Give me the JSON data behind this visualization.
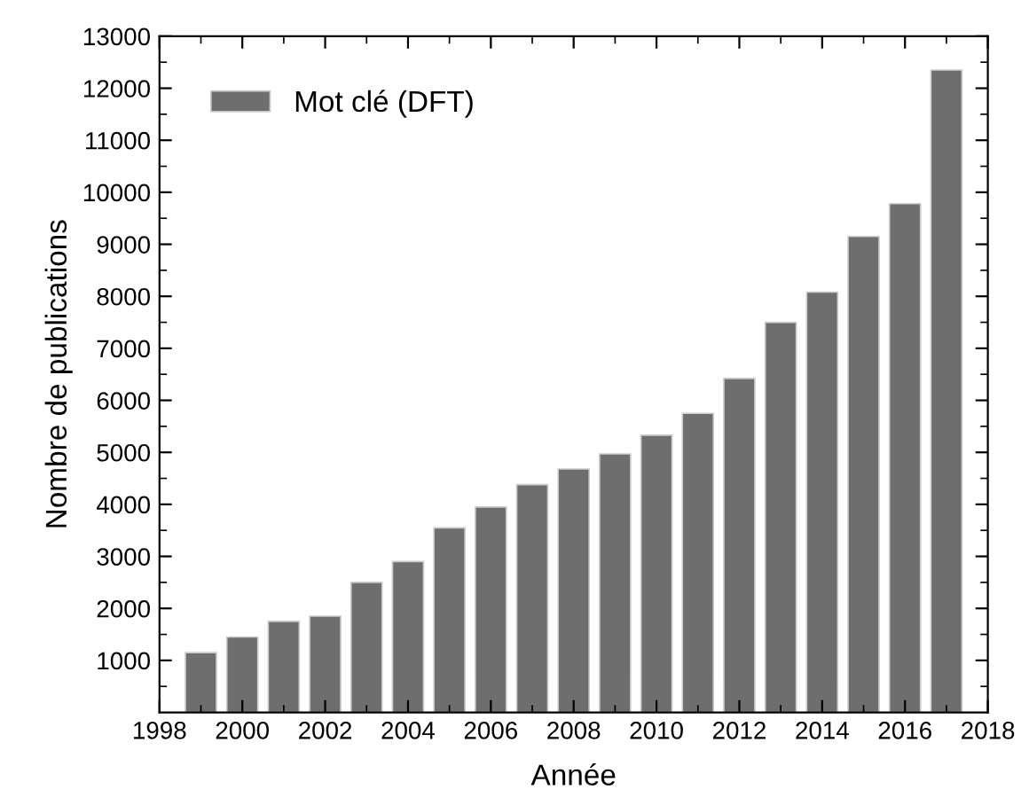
{
  "chart_data": {
    "type": "bar",
    "xlabel": "Année",
    "ylabel": "Nombre de publications",
    "x": [
      1999,
      2000,
      2001,
      2002,
      2003,
      2004,
      2005,
      2006,
      2007,
      2008,
      2009,
      2010,
      2011,
      2012,
      2013,
      2014,
      2015,
      2016,
      2017
    ],
    "series": [
      {
        "name": "Mot clé (DFT)",
        "color": "#6e6e6e",
        "values": [
          1150,
          1450,
          1750,
          1850,
          2500,
          2900,
          3550,
          3950,
          4380,
          4680,
          4970,
          5330,
          5750,
          6420,
          7500,
          8080,
          9150,
          9780,
          12350
        ]
      }
    ],
    "xlim": [
      1998,
      2018
    ],
    "xticks": [
      1998,
      2000,
      2002,
      2004,
      2006,
      2008,
      2010,
      2012,
      2014,
      2016,
      2018
    ],
    "ylim": [
      0,
      13000
    ],
    "yticks": [
      1000,
      2000,
      3000,
      4000,
      5000,
      6000,
      7000,
      8000,
      9000,
      10000,
      11000,
      12000,
      13000
    ],
    "grid": false,
    "legend": "top left"
  }
}
